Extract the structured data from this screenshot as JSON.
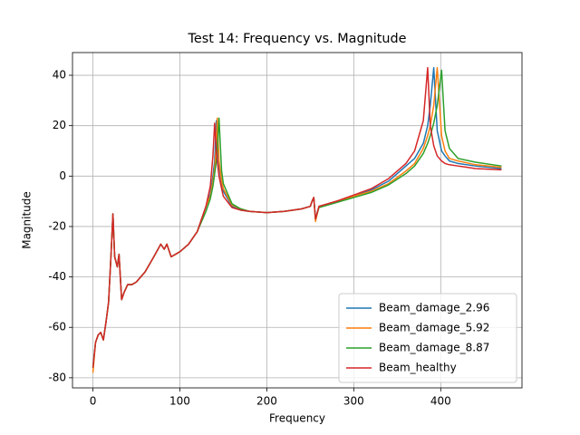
{
  "chart_data": {
    "type": "line",
    "title": "Test 14: Frequency vs. Magnitude",
    "x_label": "Frequency",
    "y_label": "Magnitude",
    "x": [
      0,
      3,
      6,
      9,
      12,
      15,
      18,
      21,
      23,
      25,
      28,
      30,
      33,
      36,
      40,
      45,
      50,
      60,
      70,
      78,
      82,
      85,
      90,
      95,
      100,
      110,
      120,
      130,
      135,
      138,
      140,
      142,
      143,
      145,
      148,
      150,
      160,
      170,
      180,
      200,
      220,
      240,
      250,
      252,
      254,
      256,
      260,
      280,
      300,
      320,
      340,
      360,
      370,
      380,
      385,
      388,
      392,
      396,
      401,
      405,
      410,
      420,
      440,
      470
    ],
    "series": [
      {
        "name": "Beam_damage_2.96",
        "color": "#1f77b4",
        "values": [
          -76,
          -66,
          -63,
          -62,
          -65,
          -58,
          -50,
          -30,
          -15,
          -32,
          -36,
          -31,
          -49,
          -46,
          -43,
          -43,
          -42,
          -38,
          -32,
          -27,
          -29,
          -27,
          -32,
          -31,
          -30,
          -27,
          -22,
          -12,
          -7,
          0,
          6,
          22,
          12,
          4,
          -3,
          -6,
          -12,
          -13.5,
          -14,
          -14.5,
          -14,
          -13,
          -12,
          -10,
          -8.5,
          -17,
          -12,
          -10,
          -8,
          -5.5,
          -2,
          4,
          7,
          13,
          20,
          28,
          43,
          18,
          10,
          8,
          6,
          5,
          4,
          3
        ]
      },
      {
        "name": "Beam_damage_5.92",
        "color": "#ff7f0e",
        "values": [
          -78,
          -66,
          -63,
          -62,
          -65,
          -58,
          -50,
          -30,
          -15,
          -32,
          -36,
          -31,
          -49,
          -46,
          -43,
          -43,
          -42,
          -38,
          -32,
          -27,
          -29,
          -27,
          -32,
          -31,
          -30,
          -27,
          -22,
          -12,
          -8,
          -2,
          3,
          12,
          23,
          6,
          -2,
          -5,
          -11.5,
          -13,
          -14,
          -14.5,
          -14,
          -13,
          -12,
          -10,
          -8.5,
          -18,
          -12,
          -10,
          -8,
          -6,
          -3,
          2,
          5,
          11,
          16,
          20,
          28,
          43,
          16,
          10,
          7,
          6,
          4.5,
          3.5
        ]
      },
      {
        "name": "Beam_damage_8.87",
        "color": "#2ca02c",
        "values": [
          -76,
          -66,
          -63,
          -62,
          -65,
          -58,
          -50,
          -30,
          -15,
          -32,
          -36,
          -31,
          -49,
          -46,
          -43,
          -43,
          -42,
          -38,
          -32,
          -27,
          -29,
          -27,
          -32,
          -31,
          -30,
          -27,
          -22,
          -14,
          -9,
          -4,
          1,
          6,
          10,
          23,
          2,
          -3,
          -11,
          -13,
          -14,
          -14.5,
          -14,
          -13,
          -12,
          -10,
          -8.5,
          -17,
          -12.5,
          -10.5,
          -8.5,
          -6.5,
          -3.5,
          1,
          4,
          9,
          13,
          16,
          21,
          28,
          42,
          18,
          11,
          7,
          5.5,
          4
        ]
      },
      {
        "name": "Beam_healthy",
        "color": "#d62728",
        "values": [
          -76,
          -66,
          -63,
          -62,
          -65,
          -58,
          -50,
          -30,
          -15,
          -32,
          -36,
          -31,
          -49,
          -46,
          -43,
          -43,
          -42,
          -38,
          -32,
          -27,
          -29,
          -27,
          -32,
          -31,
          -30,
          -27,
          -22,
          -12,
          -4,
          8,
          21,
          10,
          6,
          0,
          -5,
          -8,
          -12.5,
          -13.5,
          -14,
          -14.5,
          -14,
          -13,
          -12,
          -10,
          -8.5,
          -17,
          -12,
          -10,
          -7.5,
          -5,
          -1,
          5,
          10,
          22,
          43,
          20,
          12,
          8,
          6,
          5,
          4.5,
          4,
          3,
          2.5
        ]
      }
    ],
    "xlim": [
      -23.5,
      493.5
    ],
    "xticks": [
      0,
      100,
      200,
      300,
      400
    ],
    "ylim": [
      -84,
      49
    ],
    "yticks": [
      -80,
      -60,
      -40,
      -20,
      0,
      20,
      40
    ],
    "grid": true,
    "legend": "lower right"
  }
}
